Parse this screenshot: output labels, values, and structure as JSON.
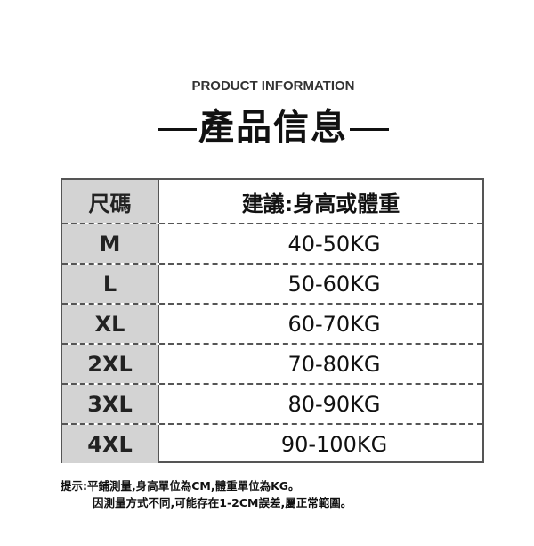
{
  "subtitle": "PRODUCT INFORMATION",
  "title": "產品信息",
  "table": {
    "header": [
      "尺碼",
      "建議:身高或體重"
    ],
    "rows": [
      [
        "M",
        "40-50KG"
      ],
      [
        "L",
        "50-60KG"
      ],
      [
        "XL",
        "60-70KG"
      ],
      [
        "2XL",
        "70-80KG"
      ],
      [
        "3XL",
        "80-90KG"
      ],
      [
        "4XL",
        "90-100KG"
      ]
    ]
  },
  "note": [
    "提示:平鋪測量,身高單位為CM,體重單位為KG。",
    "因測量方式不同,可能存在1-2CM誤差,屬正常範圍。"
  ]
}
